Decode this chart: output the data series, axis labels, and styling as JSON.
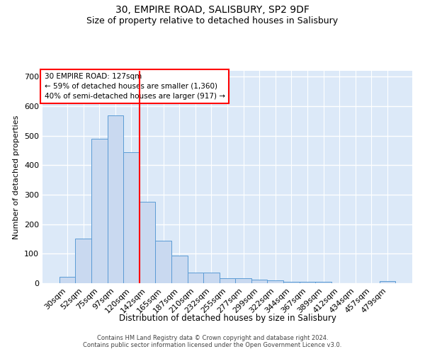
{
  "title1": "30, EMPIRE ROAD, SALISBURY, SP2 9DF",
  "title2": "Size of property relative to detached houses in Salisbury",
  "xlabel": "Distribution of detached houses by size in Salisbury",
  "ylabel": "Number of detached properties",
  "categories": [
    "30sqm",
    "52sqm",
    "75sqm",
    "97sqm",
    "120sqm",
    "142sqm",
    "165sqm",
    "187sqm",
    "210sqm",
    "232sqm",
    "255sqm",
    "277sqm",
    "299sqm",
    "322sqm",
    "344sqm",
    "367sqm",
    "389sqm",
    "412sqm",
    "434sqm",
    "457sqm",
    "479sqm"
  ],
  "values": [
    22,
    152,
    490,
    570,
    443,
    275,
    143,
    93,
    37,
    35,
    17,
    17,
    11,
    9,
    6,
    5,
    5,
    0,
    0,
    0,
    7
  ],
  "bar_color": "#c9d9f0",
  "bar_edge_color": "#5b9bd5",
  "vline_x": 4.5,
  "vline_color": "red",
  "annotation_text": "30 EMPIRE ROAD: 127sqm\n← 59% of detached houses are smaller (1,360)\n40% of semi-detached houses are larger (917) →",
  "annotation_box_color": "white",
  "annotation_box_edge": "red",
  "footnote1": "Contains HM Land Registry data © Crown copyright and database right 2024.",
  "footnote2": "Contains public sector information licensed under the Open Government Licence v3.0.",
  "ylim": [
    0,
    720
  ],
  "background_color": "#dce9f8",
  "grid_color": "white",
  "title1_fontsize": 10,
  "title2_fontsize": 9,
  "yticks": [
    0,
    100,
    200,
    300,
    400,
    500,
    600,
    700
  ]
}
